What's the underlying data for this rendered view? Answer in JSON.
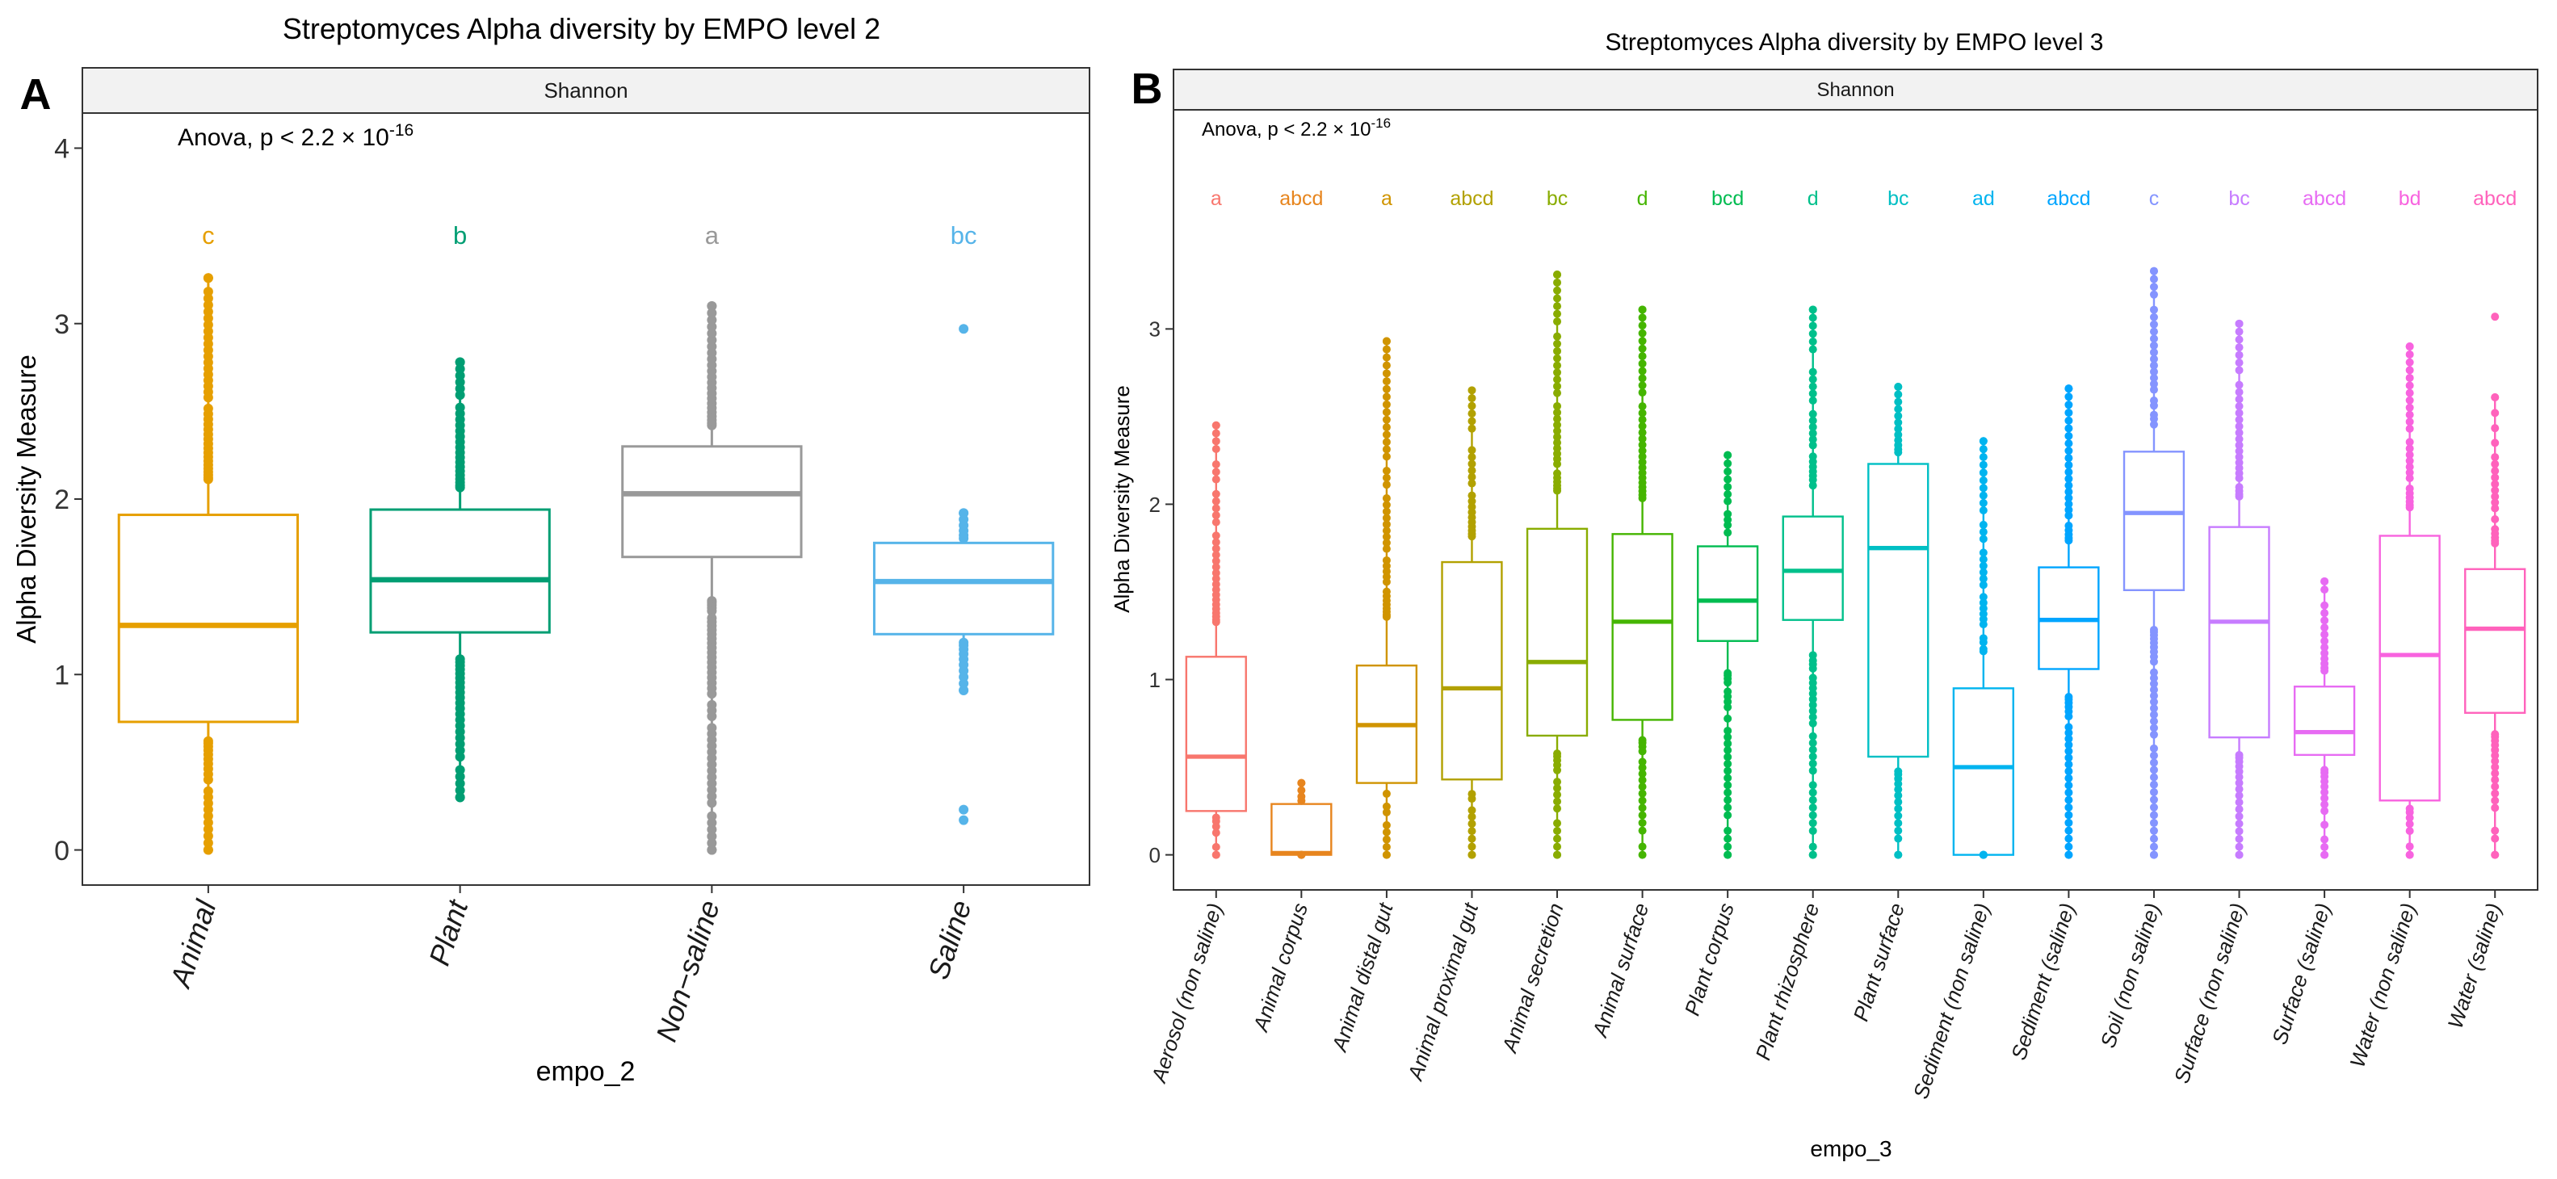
{
  "chart_data": [
    {
      "type": "box",
      "panel_label": "A",
      "title": "Streptomyces Alpha diversity by EMPO level 2",
      "facet_label": "Shannon",
      "annotation": {
        "prefix": "Anova, p < 2.2 × 10",
        "exponent": "-16"
      },
      "xlabel": "empo_2",
      "ylabel": "Alpha Diversity Measure",
      "ylim": [
        -0.2,
        4.2
      ],
      "yticks": [
        0,
        1,
        2,
        3,
        4
      ],
      "categories": [
        {
          "name": "Animal",
          "color": "#E69F00",
          "letter": "c",
          "q1": 0.73,
          "median": 1.28,
          "q3": 1.91,
          "whisker_low": 0.0,
          "whisker_high": 3.26,
          "outliers": []
        },
        {
          "name": "Plant",
          "color": "#009E73",
          "letter": "b",
          "q1": 1.24,
          "median": 1.54,
          "q3": 1.94,
          "whisker_low": 0.3,
          "whisker_high": 2.78,
          "outliers": []
        },
        {
          "name": "Non−saline",
          "color": "#999999",
          "letter": "a",
          "q1": 1.67,
          "median": 2.03,
          "q3": 2.3,
          "whisker_low": 0.0,
          "whisker_high": 3.1,
          "outliers": []
        },
        {
          "name": "Saline",
          "color": "#56B4E9",
          "letter": "bc",
          "q1": 1.23,
          "median": 1.53,
          "q3": 1.75,
          "whisker_low": 0.91,
          "whisker_high": 1.92,
          "outliers": [
            0.17,
            0.23,
            2.97
          ]
        }
      ]
    },
    {
      "type": "box",
      "panel_label": "B",
      "title": "Streptomyces Alpha diversity by EMPO level 3",
      "facet_label": "Shannon",
      "annotation": {
        "prefix": "Anova, p < 2.2 × 10",
        "exponent": "-16"
      },
      "xlabel": "empo_3",
      "ylabel": "Alpha Diversity Measure",
      "ylim": [
        -0.2,
        4.25
      ],
      "yticks": [
        0,
        1,
        2,
        3
      ],
      "categories": [
        {
          "name": "Aerosol (non saline)",
          "color": "#F8766D",
          "letter": "a",
          "q1": 0.25,
          "median": 0.56,
          "q3": 1.13,
          "whisker_low": 0.0,
          "whisker_high": 2.45,
          "outliers": []
        },
        {
          "name": "Animal corpus",
          "color": "#E7851E",
          "letter": "abcd",
          "q1": 0.0,
          "median": 0.01,
          "q3": 0.29,
          "whisker_low": 0.0,
          "whisker_high": 0.41,
          "outliers": []
        },
        {
          "name": "Animal distal gut",
          "color": "#D09400",
          "letter": "a",
          "q1": 0.41,
          "median": 0.74,
          "q3": 1.08,
          "whisker_low": 0.0,
          "whisker_high": 2.93,
          "outliers": []
        },
        {
          "name": "Animal proximal gut",
          "color": "#B2A100",
          "letter": "abcd",
          "q1": 0.43,
          "median": 0.95,
          "q3": 1.67,
          "whisker_low": 0.0,
          "whisker_high": 2.65,
          "outliers": []
        },
        {
          "name": "Animal secretion",
          "color": "#89AC00",
          "letter": "bc",
          "q1": 0.68,
          "median": 1.1,
          "q3": 1.86,
          "whisker_low": 0.0,
          "whisker_high": 3.31,
          "outliers": []
        },
        {
          "name": "Animal surface",
          "color": "#45B500",
          "letter": "d",
          "q1": 0.77,
          "median": 1.33,
          "q3": 1.83,
          "whisker_low": 0.0,
          "whisker_high": 3.11,
          "outliers": []
        },
        {
          "name": "Plant corpus",
          "color": "#00BC51",
          "letter": "bcd",
          "q1": 1.22,
          "median": 1.45,
          "q3": 1.76,
          "whisker_low": 0.0,
          "whisker_high": 2.28,
          "outliers": []
        },
        {
          "name": "Plant rhizosphere",
          "color": "#00C08B",
          "letter": "d",
          "q1": 1.34,
          "median": 1.62,
          "q3": 1.93,
          "whisker_low": 0.0,
          "whisker_high": 3.11,
          "outliers": []
        },
        {
          "name": "Plant surface",
          "color": "#00BFC4",
          "letter": "bc",
          "q1": 0.56,
          "median": 1.75,
          "q3": 2.23,
          "whisker_low": 0.0,
          "whisker_high": 2.67,
          "outliers": []
        },
        {
          "name": "Sediment (non saline)",
          "color": "#00B4EF",
          "letter": "ad",
          "q1": 0.0,
          "median": 0.5,
          "q3": 0.95,
          "whisker_low": 0.0,
          "whisker_high": 2.36,
          "outliers": []
        },
        {
          "name": "Sediment (saline)",
          "color": "#00A5FF",
          "letter": "abcd",
          "q1": 1.06,
          "median": 1.34,
          "q3": 1.64,
          "whisker_low": 0.0,
          "whisker_high": 2.66,
          "outliers": []
        },
        {
          "name": "Soil (non saline)",
          "color": "#8494FF",
          "letter": "c",
          "q1": 1.51,
          "median": 1.95,
          "q3": 2.3,
          "whisker_low": 0.0,
          "whisker_high": 3.33,
          "outliers": []
        },
        {
          "name": "Surface (non saline)",
          "color": "#C77CFF",
          "letter": "bc",
          "q1": 0.67,
          "median": 1.33,
          "q3": 1.87,
          "whisker_low": 0.0,
          "whisker_high": 3.03,
          "outliers": []
        },
        {
          "name": "Surface (saline)",
          "color": "#E76BF3",
          "letter": "abcd",
          "q1": 0.57,
          "median": 0.7,
          "q3": 0.96,
          "whisker_low": 0.0,
          "whisker_high": 1.56,
          "outliers": []
        },
        {
          "name": "Water (non saline)",
          "color": "#F863DF",
          "letter": "bd",
          "q1": 0.31,
          "median": 1.14,
          "q3": 1.82,
          "whisker_low": 0.0,
          "whisker_high": 2.9,
          "outliers": []
        },
        {
          "name": "Water (saline)",
          "color": "#FF62BC",
          "letter": "abcd",
          "q1": 0.81,
          "median": 1.29,
          "q3": 1.63,
          "whisker_low": 0.0,
          "whisker_high": 2.61,
          "outliers": [
            3.07
          ]
        }
      ]
    }
  ]
}
